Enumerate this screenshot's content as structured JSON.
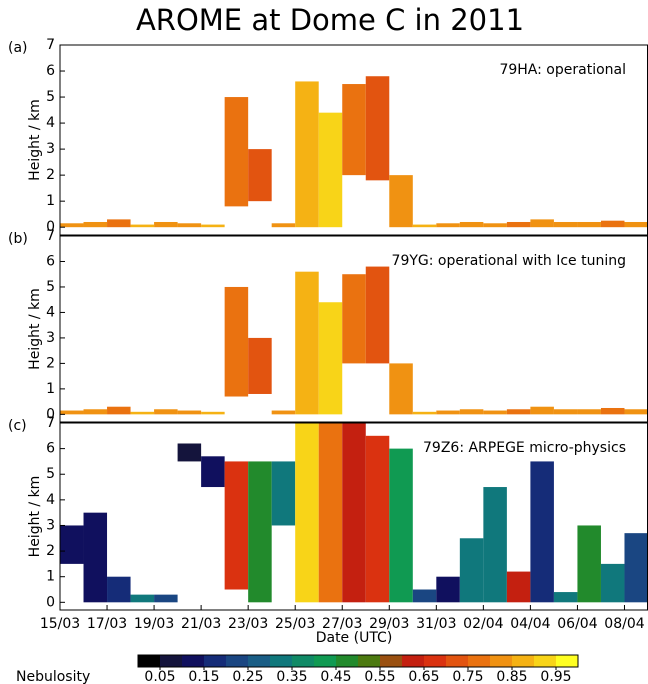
{
  "title": "AROME at Dome C in 2011",
  "colorbar": {
    "label": "Nebulosity",
    "bounds": [
      0,
      1
    ],
    "ticks": [
      0.05,
      0.15,
      0.25,
      0.35,
      0.45,
      0.55,
      0.65,
      0.75,
      0.85,
      0.95
    ],
    "colors": [
      "#000000",
      "#14143c",
      "#10105e",
      "#152c78",
      "#1a4682",
      "#1a5e86",
      "#10787c",
      "#108a66",
      "#109a52",
      "#228a2c",
      "#4c7a10",
      "#9a5010",
      "#c42010",
      "#da3210",
      "#e25410",
      "#ea7210",
      "#f09212",
      "#f5b214",
      "#f8d418",
      "#ffff22"
    ]
  },
  "chart_data": [
    {
      "type": "heatmap",
      "panel_label": "(a)",
      "title": "79HA: operational",
      "ylabel": "Height / km",
      "xlim": [
        "15/03",
        "09/04"
      ],
      "ylim": [
        -0.3,
        7
      ],
      "yticks": [
        0,
        1,
        2,
        3,
        4,
        5,
        6,
        7
      ],
      "x": [
        "15/03",
        "16/03",
        "17/03",
        "18/03",
        "19/03",
        "20/03",
        "21/03",
        "22/03",
        "23/03",
        "24/03",
        "25/03",
        "26/03",
        "27/03",
        "28/03",
        "29/03",
        "30/03",
        "31/03",
        "01/04",
        "02/04",
        "03/04",
        "04/04",
        "05/04",
        "06/04",
        "07/04",
        "08/04"
      ],
      "bottom": [
        0,
        0,
        0,
        0,
        0,
        0,
        0,
        0.8,
        1.0,
        0,
        0,
        0,
        2.0,
        1.8,
        0,
        0,
        0,
        0,
        0,
        0,
        0,
        0,
        0,
        0,
        0
      ],
      "top": [
        0.15,
        0.2,
        0.3,
        0.1,
        0.2,
        0.15,
        0.1,
        5.0,
        3.0,
        0.15,
        5.6,
        4.4,
        5.5,
        5.8,
        2.0,
        0.1,
        0.15,
        0.2,
        0.15,
        0.2,
        0.3,
        0.2,
        0.2,
        0.25,
        0.2
      ],
      "values": [
        0.8,
        0.8,
        0.75,
        0.85,
        0.8,
        0.8,
        0.85,
        0.75,
        0.7,
        0.8,
        0.85,
        0.9,
        0.75,
        0.7,
        0.8,
        0.85,
        0.8,
        0.8,
        0.8,
        0.75,
        0.8,
        0.8,
        0.8,
        0.75,
        0.8
      ]
    },
    {
      "type": "heatmap",
      "panel_label": "(b)",
      "title": "79YG: operational with Ice tuning",
      "ylabel": "Height / km",
      "xlim": [
        "15/03",
        "09/04"
      ],
      "ylim": [
        -0.3,
        7
      ],
      "yticks": [
        0,
        1,
        2,
        3,
        4,
        5,
        6,
        7
      ],
      "x": [
        "15/03",
        "16/03",
        "17/03",
        "18/03",
        "19/03",
        "20/03",
        "21/03",
        "22/03",
        "23/03",
        "24/03",
        "25/03",
        "26/03",
        "27/03",
        "28/03",
        "29/03",
        "30/03",
        "31/03",
        "01/04",
        "02/04",
        "03/04",
        "04/04",
        "05/04",
        "06/04",
        "07/04",
        "08/04"
      ],
      "bottom": [
        0,
        0,
        0,
        0,
        0,
        0,
        0,
        0.7,
        0.8,
        0,
        0,
        0,
        2.0,
        2.0,
        0,
        0,
        0,
        0,
        0,
        0,
        0,
        0,
        0,
        0,
        0
      ],
      "top": [
        0.15,
        0.2,
        0.3,
        0.1,
        0.2,
        0.15,
        0.1,
        5.0,
        3.0,
        0.15,
        5.6,
        4.4,
        5.5,
        5.8,
        2.0,
        0.1,
        0.15,
        0.2,
        0.15,
        0.2,
        0.3,
        0.2,
        0.2,
        0.25,
        0.2
      ],
      "values": [
        0.8,
        0.8,
        0.75,
        0.85,
        0.8,
        0.8,
        0.85,
        0.75,
        0.7,
        0.8,
        0.85,
        0.9,
        0.75,
        0.7,
        0.8,
        0.85,
        0.8,
        0.8,
        0.8,
        0.75,
        0.8,
        0.8,
        0.8,
        0.75,
        0.8
      ]
    },
    {
      "type": "heatmap",
      "panel_label": "(c)",
      "title": "79Z6: ARPEGE micro-physics",
      "ylabel": "Height / km",
      "xlabel": "Date (UTC)",
      "xlim": [
        "15/03",
        "09/04"
      ],
      "ylim": [
        -0.3,
        7
      ],
      "yticks": [
        0,
        1,
        2,
        3,
        4,
        5,
        6,
        7
      ],
      "xticks": [
        "15/03",
        "17/03",
        "19/03",
        "21/03",
        "23/03",
        "25/03",
        "27/03",
        "29/03",
        "31/03",
        "02/04",
        "04/04",
        "06/04",
        "08/04"
      ],
      "x": [
        "15/03",
        "16/03",
        "17/03",
        "18/03",
        "19/03",
        "20/03",
        "21/03",
        "22/03",
        "23/03",
        "24/03",
        "25/03",
        "26/03",
        "27/03",
        "28/03",
        "29/03",
        "30/03",
        "31/03",
        "01/04",
        "02/04",
        "03/04",
        "04/04",
        "05/04",
        "06/04",
        "07/04",
        "08/04"
      ],
      "bottom": [
        1.5,
        0,
        0,
        0,
        0,
        5.5,
        4.5,
        0.5,
        0,
        3.0,
        0,
        0,
        0,
        0,
        0,
        0,
        0,
        0,
        0,
        0,
        0,
        0,
        0,
        0,
        0
      ],
      "top": [
        3.0,
        3.5,
        1.0,
        0.3,
        0.3,
        6.2,
        5.7,
        5.5,
        5.5,
        5.5,
        7,
        7,
        7,
        6.5,
        6.0,
        0.5,
        1.0,
        2.5,
        4.5,
        1.2,
        5.5,
        0.4,
        3.0,
        1.5,
        2.7
      ],
      "values": [
        0.1,
        0.1,
        0.15,
        0.3,
        0.2,
        0.05,
        0.1,
        0.65,
        0.45,
        0.3,
        0.9,
        0.75,
        0.6,
        0.65,
        0.4,
        0.2,
        0.1,
        0.3,
        0.3,
        0.6,
        0.15,
        0.3,
        0.45,
        0.3,
        0.2
      ]
    }
  ]
}
